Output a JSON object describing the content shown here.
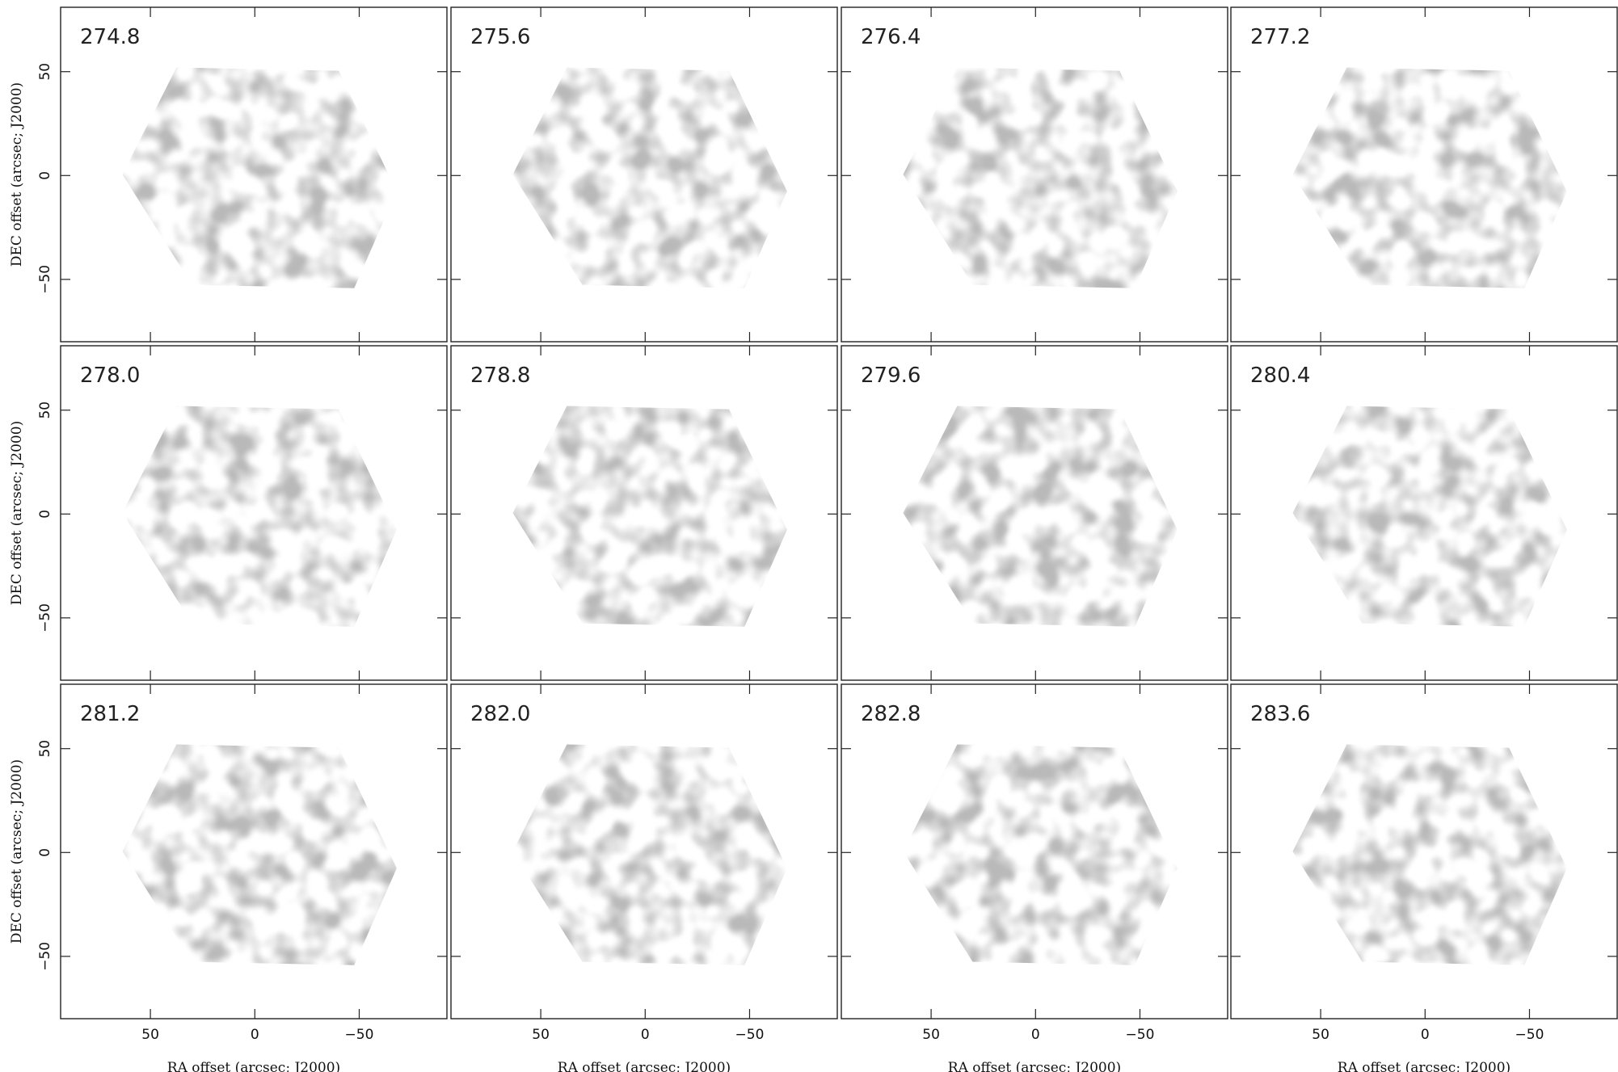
{
  "chart_data": [
    {
      "type": "image",
      "title": "274.8",
      "xlim": [
        93,
        -92
      ],
      "ylim": [
        -80,
        81
      ],
      "ylabel": "DEC offset (arcsec; J2000)",
      "xticks": [
        50,
        0,
        -50
      ],
      "yticks": [
        {
          "value": -50,
          "label": "−50"
        },
        0,
        50
      ]
    },
    {
      "type": "image",
      "title": "275.6",
      "xlim": [
        93,
        -92
      ],
      "ylim": [
        -80,
        81
      ],
      "xticks": [
        50,
        0,
        -50
      ],
      "yticks": [
        -50,
        0,
        50
      ]
    },
    {
      "type": "image",
      "title": "276.4",
      "xlim": [
        93,
        -92
      ],
      "ylim": [
        -80,
        81
      ],
      "xticks": [
        50,
        0,
        -50
      ],
      "yticks": [
        -50,
        0,
        50
      ]
    },
    {
      "type": "image",
      "title": "277.2",
      "xlim": [
        93,
        -92
      ],
      "ylim": [
        -80,
        81
      ],
      "xticks": [
        50,
        0,
        -50
      ],
      "yticks": [
        -50,
        0,
        50
      ]
    },
    {
      "type": "image",
      "title": "278.0",
      "xlim": [
        93,
        -92
      ],
      "ylim": [
        -80,
        81
      ],
      "ylabel": "DEC offset (arcsec; J2000)",
      "xticks": [
        50,
        0,
        -50
      ],
      "yticks": [
        {
          "value": -50,
          "label": "−50"
        },
        0,
        50
      ]
    },
    {
      "type": "image",
      "title": "278.8",
      "xlim": [
        93,
        -92
      ],
      "ylim": [
        -80,
        81
      ],
      "xticks": [
        50,
        0,
        -50
      ],
      "yticks": [
        -50,
        0,
        50
      ]
    },
    {
      "type": "image",
      "title": "279.6",
      "xlim": [
        93,
        -92
      ],
      "ylim": [
        -80,
        81
      ],
      "xticks": [
        50,
        0,
        -50
      ],
      "yticks": [
        -50,
        0,
        50
      ]
    },
    {
      "type": "image",
      "title": "280.4",
      "xlim": [
        93,
        -92
      ],
      "ylim": [
        -80,
        81
      ],
      "xticks": [
        50,
        0,
        -50
      ],
      "yticks": [
        -50,
        0,
        50
      ]
    },
    {
      "type": "image",
      "title": "281.2",
      "xlim": [
        93,
        -92
      ],
      "ylim": [
        -80,
        81
      ],
      "ylabel": "DEC offset (arcsec; J2000)",
      "xlabel": "RA offset (arcsec; J2000)",
      "xticks": [
        50,
        0,
        {
          "value": -50,
          "label": "−50"
        }
      ],
      "yticks": [
        {
          "value": -50,
          "label": "−50"
        },
        0,
        50
      ]
    },
    {
      "type": "image",
      "title": "282.0",
      "xlim": [
        93,
        -92
      ],
      "ylim": [
        -80,
        81
      ],
      "xlabel": "RA offset (arcsec; J2000)",
      "xticks": [
        50,
        0,
        {
          "value": -50,
          "label": "−50"
        }
      ],
      "yticks": [
        -50,
        0,
        50
      ]
    },
    {
      "type": "image",
      "title": "282.8",
      "xlim": [
        93,
        -92
      ],
      "ylim": [
        -80,
        81
      ],
      "xlabel": "RA offset (arcsec; J2000)",
      "xticks": [
        50,
        0,
        {
          "value": -50,
          "label": "−50"
        }
      ],
      "yticks": [
        -50,
        0,
        50
      ]
    },
    {
      "type": "image",
      "title": "283.6",
      "xlim": [
        93,
        -92
      ],
      "ylim": [
        -80,
        81
      ],
      "xlabel": "RA offset (arcsec; J2000)",
      "xticks": [
        50,
        0,
        {
          "value": -50,
          "label": "−50"
        }
      ],
      "yticks": [
        -50,
        0,
        50
      ]
    }
  ]
}
